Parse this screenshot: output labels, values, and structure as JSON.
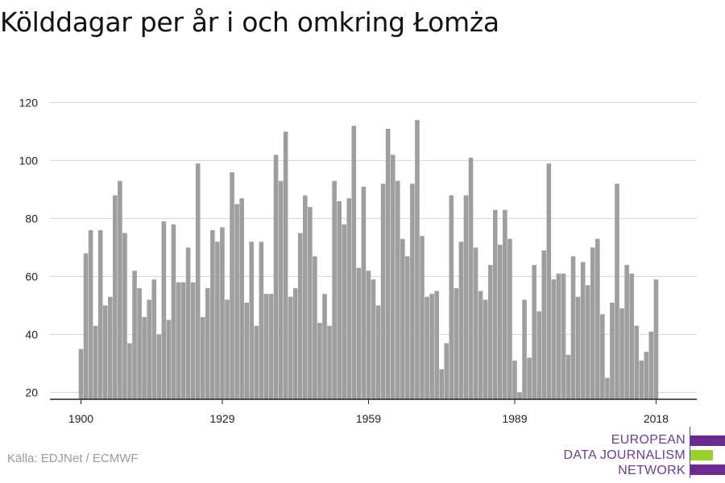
{
  "title": "Kölddagar per år i och omkring Łomża",
  "source": "Källa: EDJNet / ECMWF",
  "logo": {
    "line1": "EUROPEAN",
    "line2": "DATA JOURNALISM",
    "line3": "NETWORK",
    "colors": {
      "text": "#6b3d8f",
      "bar_top": "#6b2a8f",
      "bar_mid": "#9bd12c",
      "bar_bottom": "#6b2a8f"
    }
  },
  "colors": {
    "bar": "#9e9e9e",
    "grid": "#d9d9d9",
    "axis": "#222222",
    "title": "#111111",
    "source": "#9a9a9a"
  },
  "chart_data": {
    "type": "bar",
    "title": "Kölddagar per år i och omkring Łomża",
    "xlabel": "",
    "ylabel": "",
    "x_ticks": [
      1900,
      1929,
      1959,
      1989,
      2018
    ],
    "y_ticks": [
      20,
      40,
      60,
      80,
      100,
      120
    ],
    "ylim": [
      17,
      128
    ],
    "xlim": [
      1899,
      2018
    ],
    "grid": true,
    "x": [
      1900,
      1901,
      1902,
      1903,
      1904,
      1905,
      1906,
      1907,
      1908,
      1909,
      1910,
      1911,
      1912,
      1913,
      1914,
      1915,
      1916,
      1917,
      1918,
      1919,
      1920,
      1921,
      1922,
      1923,
      1924,
      1925,
      1926,
      1927,
      1928,
      1929,
      1930,
      1931,
      1932,
      1933,
      1934,
      1935,
      1936,
      1937,
      1938,
      1939,
      1940,
      1941,
      1942,
      1943,
      1944,
      1945,
      1946,
      1947,
      1948,
      1949,
      1950,
      1951,
      1952,
      1953,
      1954,
      1955,
      1956,
      1957,
      1958,
      1959,
      1960,
      1961,
      1962,
      1963,
      1964,
      1965,
      1966,
      1967,
      1968,
      1969,
      1970,
      1971,
      1972,
      1973,
      1974,
      1975,
      1976,
      1977,
      1978,
      1979,
      1980,
      1981,
      1982,
      1983,
      1984,
      1985,
      1986,
      1987,
      1988,
      1989,
      1990,
      1991,
      1992,
      1993,
      1994,
      1995,
      1996,
      1997,
      1998,
      1999,
      2000,
      2001,
      2002,
      2003,
      2004,
      2005,
      2006,
      2007,
      2008,
      2009,
      2010,
      2011,
      2012,
      2013,
      2014,
      2015,
      2016,
      2017,
      2018
    ],
    "values": [
      35,
      68,
      76,
      43,
      76,
      50,
      53,
      88,
      93,
      75,
      37,
      62,
      56,
      46,
      52,
      59,
      40,
      79,
      45,
      78,
      58,
      58,
      70,
      58,
      99,
      46,
      56,
      76,
      72,
      77,
      52,
      96,
      85,
      87,
      51,
      72,
      43,
      72,
      54,
      54,
      102,
      93,
      110,
      53,
      56,
      75,
      88,
      84,
      67,
      44,
      54,
      43,
      93,
      86,
      78,
      87,
      112,
      63,
      91,
      62,
      59,
      50,
      92,
      111,
      102,
      93,
      73,
      67,
      92,
      114,
      74,
      53,
      54,
      55,
      28,
      37,
      88,
      56,
      72,
      88,
      101,
      70,
      55,
      52,
      64,
      83,
      71,
      83,
      73,
      31,
      20,
      52,
      32,
      64,
      48,
      69,
      99,
      59,
      61,
      61,
      33,
      67,
      53,
      65,
      57,
      70,
      73,
      47,
      25,
      51,
      92,
      49,
      64,
      61,
      43,
      31,
      34,
      41,
      59
    ]
  }
}
